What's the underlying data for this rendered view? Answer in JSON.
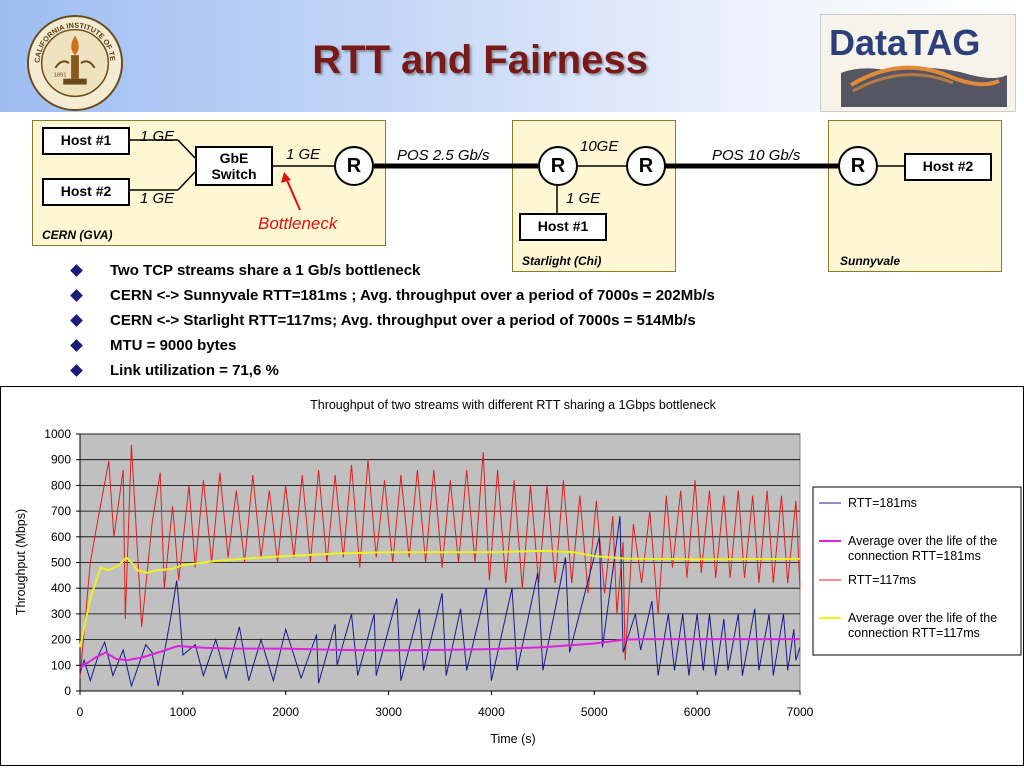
{
  "slide": {
    "title": "RTT and Fairness"
  },
  "logos": {
    "caltech_text": "CALIFORNIA INSTITUTE OF TECHNOLOGY",
    "caltech_year": "1891",
    "datatag_text": "DataTAG"
  },
  "diagram": {
    "cern": {
      "label": "CERN (GVA)",
      "host1": "Host #1",
      "host2": "Host #2",
      "switch": "GbE Switch",
      "link_host1": "1 GE",
      "link_host2": "1 GE",
      "link_switch_router": "1 GE",
      "router": "R",
      "bottleneck": "Bottleneck"
    },
    "link_cern_chi": "POS 2.5 Gb/s",
    "starlight": {
      "label": "Starlight (Chi)",
      "router_a": "R",
      "router_b": "R",
      "link_between": "10GE",
      "link_host": "1 GE",
      "host1": "Host #1"
    },
    "link_chi_sunnyvale": "POS 10 Gb/s",
    "sunnyvale": {
      "label": "Sunnyvale",
      "router": "R",
      "host2": "Host #2"
    }
  },
  "bullets": [
    "Two TCP streams share a 1 Gb/s bottleneck",
    "CERN <-> Sunnyvale RTT=181ms ; Avg. throughput over a period of 7000s = 202Mb/s",
    "CERN <-> Starlight  RTT=117ms; Avg. throughput over a period of 7000s = 514Mb/s",
    "MTU = 9000 bytes",
    "Link utilization = 71,6 %"
  ],
  "colors": {
    "title": "#7a1a18",
    "rtt181": "#1a1a8c",
    "avg181": "#e020e0",
    "rtt117": "#e02020",
    "avg117": "#f0f020",
    "plot_bg": "#c0c0c0"
  },
  "chart_data": {
    "type": "line",
    "title": "Throughput of two streams with different RTT sharing a 1Gbps bottleneck",
    "xlabel": "Time (s)",
    "ylabel": "Throughput (Mbps)",
    "xlim": [
      0,
      7000
    ],
    "ylim": [
      0,
      1000
    ],
    "xticks": [
      "0",
      "1000",
      "2000",
      "3000",
      "4000",
      "5000",
      "6000",
      "7000"
    ],
    "yticks": [
      "0",
      "100",
      "200",
      "300",
      "400",
      "500",
      "600",
      "700",
      "800",
      "900",
      "1000"
    ],
    "grid": true,
    "legend_position": "right",
    "series": [
      {
        "name": "RTT=181ms",
        "points": [
          [
            0,
            70
          ],
          [
            40,
            120
          ],
          [
            100,
            40
          ],
          [
            180,
            140
          ],
          [
            240,
            190
          ],
          [
            320,
            60
          ],
          [
            420,
            160
          ],
          [
            500,
            20
          ],
          [
            640,
            180
          ],
          [
            700,
            150
          ],
          [
            760,
            20
          ],
          [
            880,
            280
          ],
          [
            940,
            430
          ],
          [
            960,
            350
          ],
          [
            1000,
            140
          ],
          [
            1120,
            180
          ],
          [
            1200,
            60
          ],
          [
            1320,
            200
          ],
          [
            1420,
            50
          ],
          [
            1550,
            250
          ],
          [
            1580,
            180
          ],
          [
            1640,
            40
          ],
          [
            1760,
            200
          ],
          [
            1880,
            40
          ],
          [
            2000,
            240
          ],
          [
            2150,
            50
          ],
          [
            2300,
            220
          ],
          [
            2320,
            30
          ],
          [
            2480,
            260
          ],
          [
            2500,
            100
          ],
          [
            2640,
            300
          ],
          [
            2700,
            60
          ],
          [
            2860,
            300
          ],
          [
            2880,
            60
          ],
          [
            3080,
            360
          ],
          [
            3120,
            40
          ],
          [
            3300,
            320
          ],
          [
            3340,
            80
          ],
          [
            3520,
            380
          ],
          [
            3560,
            60
          ],
          [
            3700,
            320
          ],
          [
            3760,
            80
          ],
          [
            3950,
            400
          ],
          [
            4000,
            40
          ],
          [
            4200,
            400
          ],
          [
            4250,
            80
          ],
          [
            4450,
            460
          ],
          [
            4500,
            80
          ],
          [
            4720,
            520
          ],
          [
            4760,
            150
          ],
          [
            5050,
            600
          ],
          [
            5080,
            170
          ],
          [
            5250,
            680
          ],
          [
            5280,
            150
          ],
          [
            5400,
            300
          ],
          [
            5450,
            160
          ],
          [
            5560,
            350
          ],
          [
            5620,
            60
          ],
          [
            5720,
            300
          ],
          [
            5780,
            80
          ],
          [
            5860,
            300
          ],
          [
            5920,
            60
          ],
          [
            6000,
            300
          ],
          [
            6060,
            80
          ],
          [
            6120,
            300
          ],
          [
            6180,
            60
          ],
          [
            6260,
            280
          ],
          [
            6300,
            80
          ],
          [
            6400,
            300
          ],
          [
            6440,
            60
          ],
          [
            6560,
            320
          ],
          [
            6600,
            80
          ],
          [
            6700,
            300
          ],
          [
            6740,
            60
          ],
          [
            6840,
            300
          ],
          [
            6880,
            80
          ],
          [
            6940,
            240
          ],
          [
            6960,
            120
          ],
          [
            7000,
            170
          ]
        ]
      },
      {
        "name": "Average over the life of the connection RTT=181ms",
        "points": [
          [
            0,
            90
          ],
          [
            150,
            130
          ],
          [
            250,
            150
          ],
          [
            350,
            125
          ],
          [
            450,
            120
          ],
          [
            600,
            130
          ],
          [
            800,
            155
          ],
          [
            950,
            175
          ],
          [
            1200,
            168
          ],
          [
            1500,
            165
          ],
          [
            2000,
            165
          ],
          [
            2500,
            160
          ],
          [
            3000,
            158
          ],
          [
            3500,
            160
          ],
          [
            4000,
            163
          ],
          [
            4500,
            170
          ],
          [
            5000,
            185
          ],
          [
            5300,
            200
          ],
          [
            5500,
            202
          ],
          [
            6000,
            202
          ],
          [
            6500,
            202
          ],
          [
            7000,
            202
          ]
        ]
      },
      {
        "name": "RTT=117ms",
        "points": [
          [
            0,
            50
          ],
          [
            100,
            500
          ],
          [
            180,
            680
          ],
          [
            280,
            895
          ],
          [
            330,
            600
          ],
          [
            420,
            860
          ],
          [
            440,
            280
          ],
          [
            500,
            958
          ],
          [
            540,
            680
          ],
          [
            600,
            250
          ],
          [
            700,
            650
          ],
          [
            780,
            850
          ],
          [
            820,
            400
          ],
          [
            900,
            720
          ],
          [
            960,
            430
          ],
          [
            1060,
            800
          ],
          [
            1120,
            480
          ],
          [
            1200,
            820
          ],
          [
            1280,
            500
          ],
          [
            1360,
            850
          ],
          [
            1440,
            520
          ],
          [
            1520,
            780
          ],
          [
            1600,
            500
          ],
          [
            1680,
            840
          ],
          [
            1760,
            520
          ],
          [
            1840,
            780
          ],
          [
            1920,
            500
          ],
          [
            2000,
            800
          ],
          [
            2080,
            520
          ],
          [
            2160,
            840
          ],
          [
            2240,
            500
          ],
          [
            2320,
            860
          ],
          [
            2400,
            500
          ],
          [
            2480,
            840
          ],
          [
            2560,
            520
          ],
          [
            2640,
            880
          ],
          [
            2720,
            480
          ],
          [
            2800,
            900
          ],
          [
            2880,
            520
          ],
          [
            2960,
            820
          ],
          [
            3040,
            500
          ],
          [
            3120,
            840
          ],
          [
            3200,
            520
          ],
          [
            3280,
            860
          ],
          [
            3360,
            500
          ],
          [
            3440,
            860
          ],
          [
            3520,
            480
          ],
          [
            3600,
            820
          ],
          [
            3680,
            500
          ],
          [
            3760,
            860
          ],
          [
            3840,
            500
          ],
          [
            3920,
            930
          ],
          [
            3980,
            430
          ],
          [
            4060,
            860
          ],
          [
            4140,
            420
          ],
          [
            4220,
            820
          ],
          [
            4300,
            400
          ],
          [
            4380,
            800
          ],
          [
            4460,
            420
          ],
          [
            4540,
            800
          ],
          [
            4620,
            420
          ],
          [
            4700,
            820
          ],
          [
            4780,
            420
          ],
          [
            4860,
            760
          ],
          [
            4940,
            380
          ],
          [
            5020,
            740
          ],
          [
            5100,
            380
          ],
          [
            5180,
            680
          ],
          [
            5220,
            300
          ],
          [
            5280,
            580
          ],
          [
            5300,
            120
          ],
          [
            5380,
            650
          ],
          [
            5460,
            420
          ],
          [
            5540,
            700
          ],
          [
            5620,
            300
          ],
          [
            5700,
            760
          ],
          [
            5760,
            480
          ],
          [
            5840,
            780
          ],
          [
            5900,
            440
          ],
          [
            5980,
            820
          ],
          [
            6040,
            460
          ],
          [
            6120,
            780
          ],
          [
            6180,
            440
          ],
          [
            6260,
            760
          ],
          [
            6320,
            440
          ],
          [
            6400,
            780
          ],
          [
            6460,
            440
          ],
          [
            6540,
            760
          ],
          [
            6600,
            420
          ],
          [
            6680,
            780
          ],
          [
            6740,
            420
          ],
          [
            6820,
            760
          ],
          [
            6880,
            420
          ],
          [
            6960,
            740
          ],
          [
            7000,
            400
          ]
        ]
      },
      {
        "name": "Average over the life of the connection RTT=117ms",
        "points": [
          [
            0,
            170
          ],
          [
            100,
            360
          ],
          [
            200,
            480
          ],
          [
            280,
            470
          ],
          [
            380,
            490
          ],
          [
            450,
            520
          ],
          [
            500,
            500
          ],
          [
            560,
            470
          ],
          [
            650,
            460
          ],
          [
            750,
            470
          ],
          [
            900,
            475
          ],
          [
            1000,
            490
          ],
          [
            1300,
            505
          ],
          [
            1600,
            515
          ],
          [
            2000,
            525
          ],
          [
            2500,
            535
          ],
          [
            3000,
            540
          ],
          [
            3500,
            540
          ],
          [
            4000,
            540
          ],
          [
            4500,
            545
          ],
          [
            4800,
            540
          ],
          [
            5000,
            525
          ],
          [
            5300,
            515
          ],
          [
            6000,
            512
          ],
          [
            7000,
            514
          ]
        ]
      }
    ]
  }
}
